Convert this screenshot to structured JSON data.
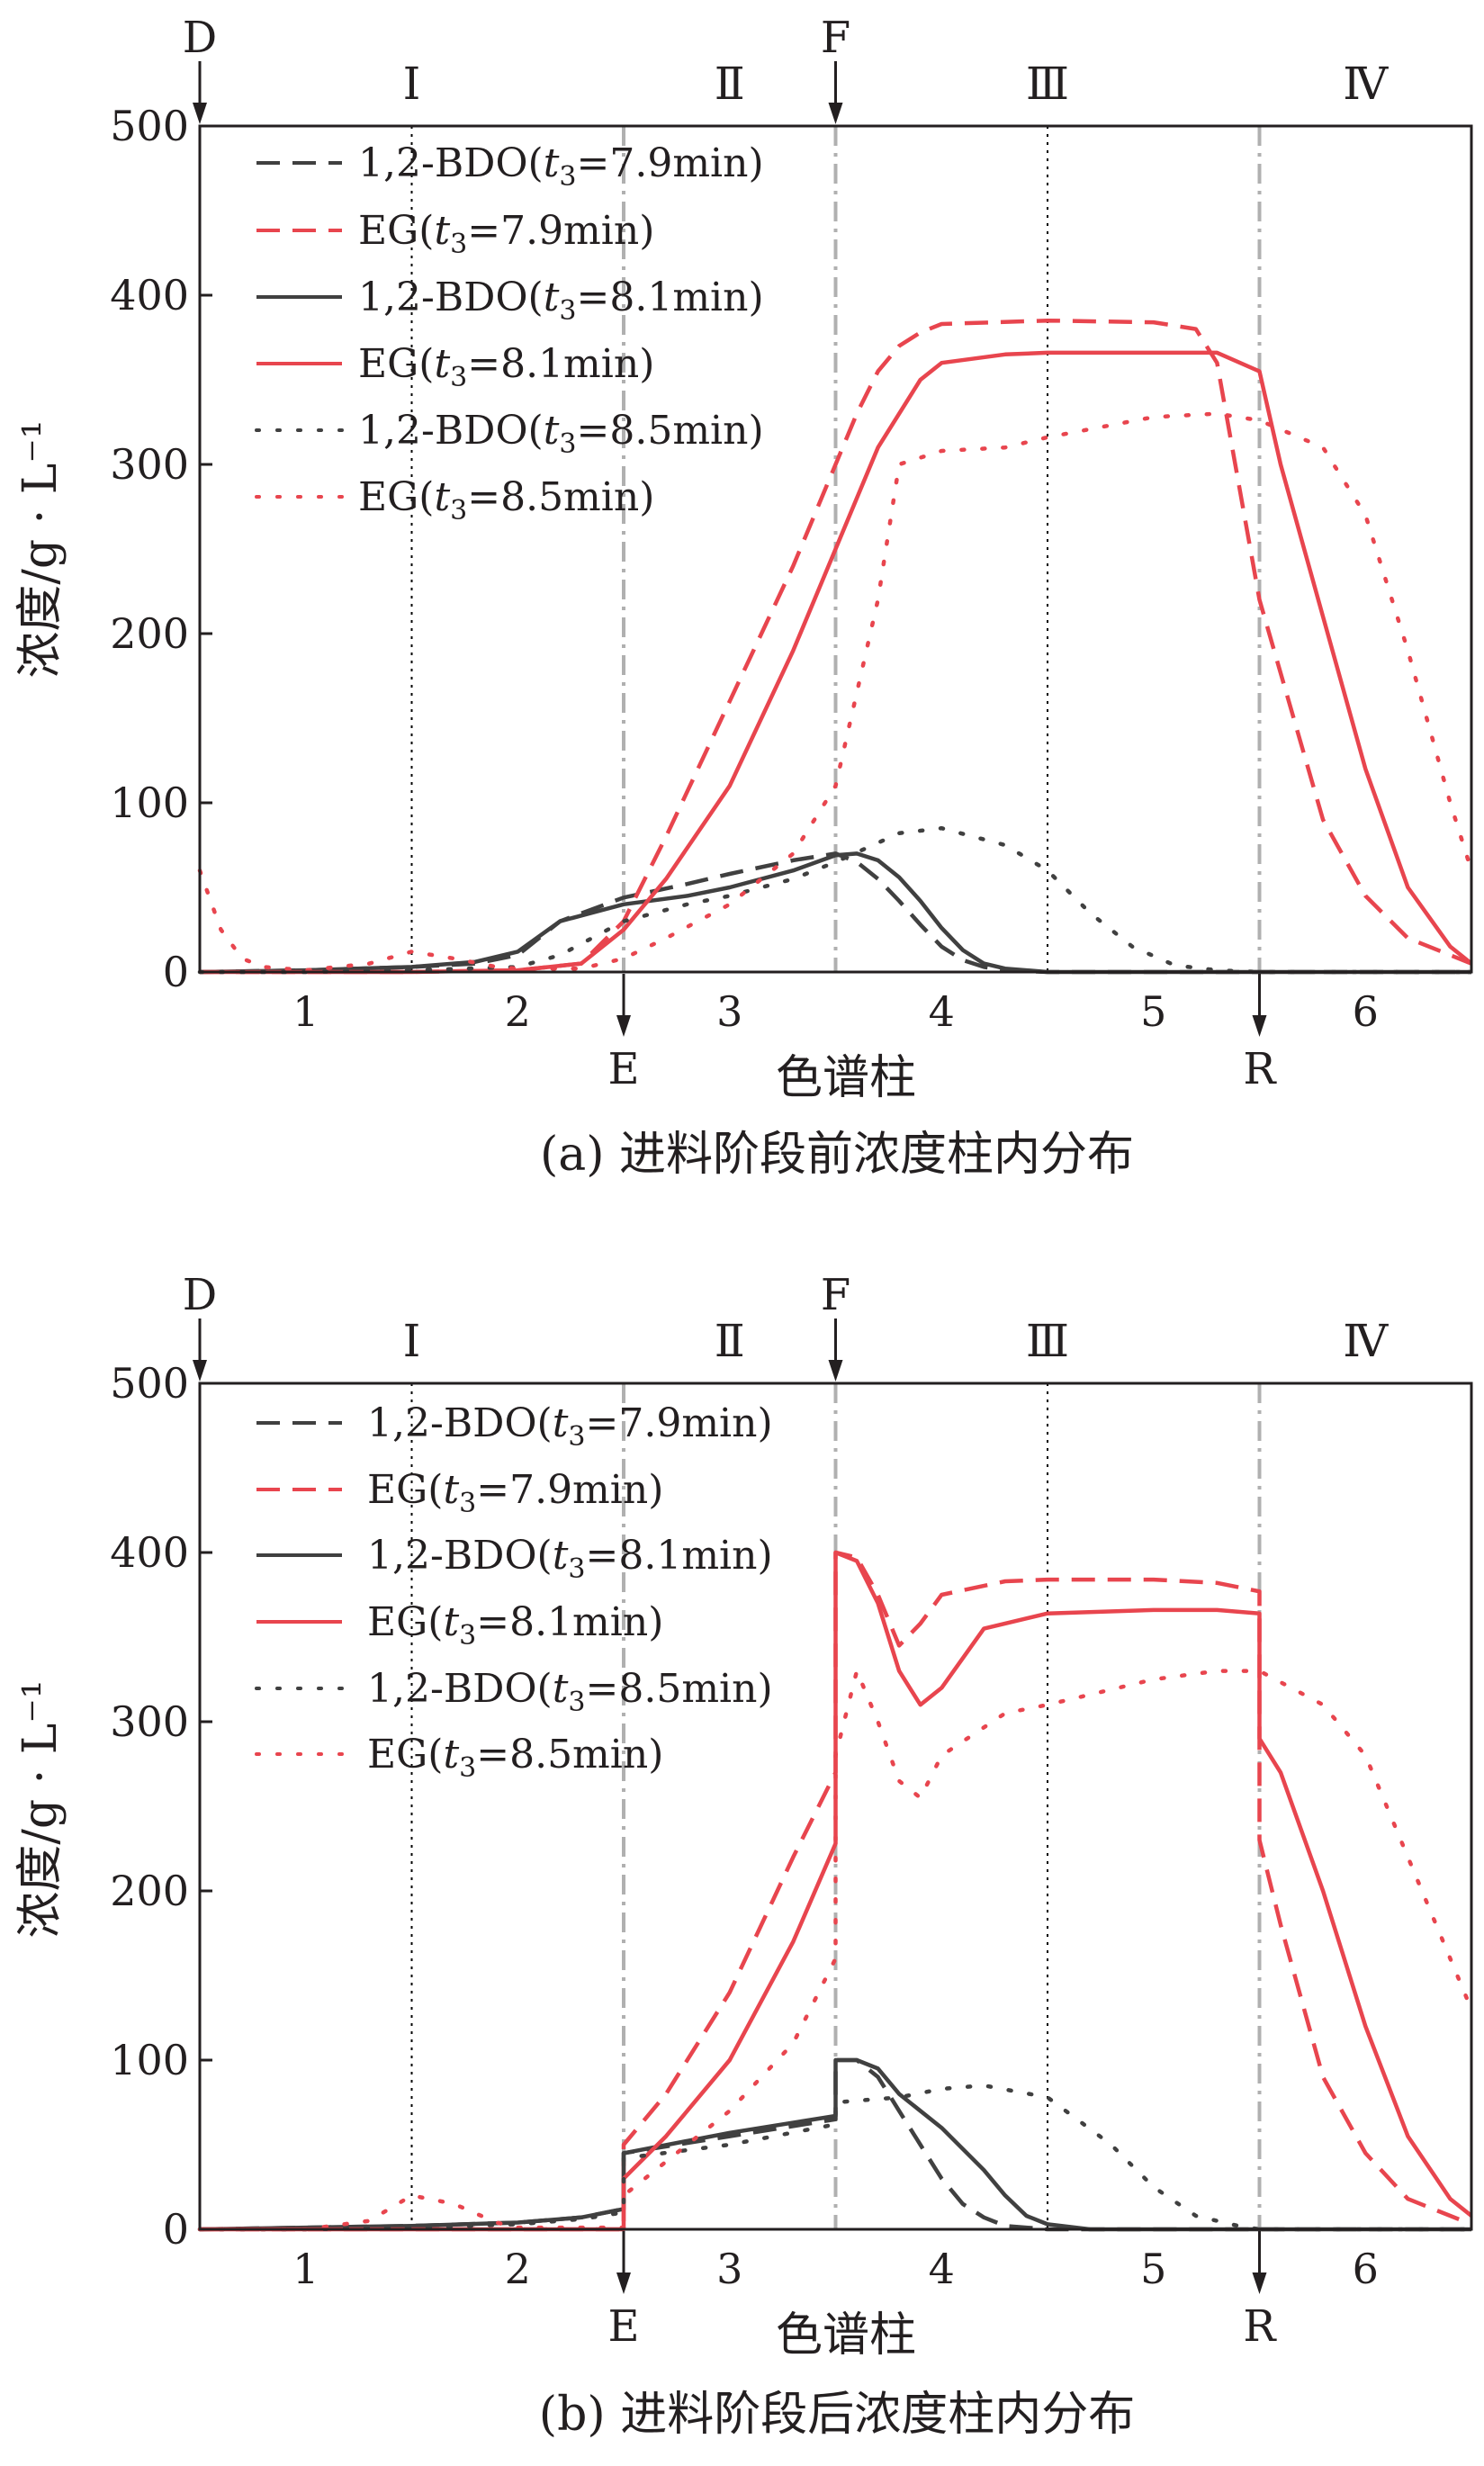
{
  "figure": {
    "panels": [
      {
        "caption": "(a) 进料阶段前浓度柱内分布"
      },
      {
        "caption": "(b) 进料阶段后浓度柱内分布"
      }
    ]
  },
  "chart_data": [
    {
      "type": "line",
      "caption": "(a) 进料阶段前浓度柱内分布",
      "xlabel": "色谱柱",
      "ylabel": "浓度/g · L⁻¹",
      "xlim": [
        0.5,
        6.5
      ],
      "ylim": [
        0,
        500
      ],
      "yticks": [
        0,
        100,
        200,
        300,
        400,
        500
      ],
      "column_labels": [
        "1",
        "2",
        "3",
        "4",
        "5",
        "6"
      ],
      "zone_labels": [
        "Ⅰ",
        "Ⅱ",
        "Ⅲ",
        "Ⅳ"
      ],
      "port_labels": {
        "top": [
          "D",
          "F"
        ],
        "bottom": [
          "E",
          "R"
        ]
      },
      "colors": {
        "bdo": "#404040",
        "eg": "#e8454e",
        "port_line": "#b0b0b0",
        "zone_line": "#000000"
      },
      "legend_position": "top-left",
      "series": [
        {
          "name": "1,2-BDO(t3=7.9min)",
          "legend_main": "1,2-BDO(",
          "legend_var": "t",
          "legend_sub": "3",
          "legend_rest": "=7.9min)",
          "component": "bdo",
          "style": "dashed",
          "x": [
            0.5,
            1.0,
            1.5,
            1.8,
            2.0,
            2.2,
            2.5,
            2.8,
            3.0,
            3.3,
            3.5,
            3.6,
            3.7,
            3.8,
            3.9,
            4.0,
            4.1,
            4.2,
            4.3,
            4.5,
            6.5
          ],
          "y": [
            0,
            1,
            3,
            5,
            10,
            30,
            44,
            52,
            58,
            66,
            70,
            65,
            55,
            42,
            28,
            15,
            7,
            3,
            1,
            0,
            0
          ]
        },
        {
          "name": "EG(t3=7.9min)",
          "legend_main": "EG(",
          "legend_var": "t",
          "legend_sub": "3",
          "legend_rest": "=7.9min)",
          "component": "eg",
          "style": "dashed",
          "x": [
            0.5,
            1.0,
            1.5,
            2.0,
            2.3,
            2.5,
            2.7,
            3.0,
            3.3,
            3.5,
            3.6,
            3.7,
            3.8,
            3.9,
            4.0,
            4.5,
            5.0,
            5.2,
            5.3,
            5.5,
            5.8,
            6.0,
            6.2,
            6.5
          ],
          "y": [
            0,
            0,
            0,
            1,
            5,
            30,
            80,
            160,
            240,
            300,
            330,
            355,
            370,
            378,
            383,
            385,
            384,
            380,
            360,
            220,
            90,
            45,
            20,
            5
          ]
        },
        {
          "name": "1,2-BDO(t3=8.1min)",
          "legend_main": "1,2-BDO(",
          "legend_var": "t",
          "legend_sub": "3",
          "legend_rest": "=8.1min)",
          "component": "bdo",
          "style": "solid",
          "x": [
            0.5,
            1.0,
            1.5,
            1.8,
            2.0,
            2.2,
            2.5,
            2.8,
            3.0,
            3.3,
            3.5,
            3.6,
            3.7,
            3.8,
            3.9,
            4.0,
            4.1,
            4.2,
            4.3,
            4.5,
            6.5
          ],
          "y": [
            0,
            1,
            3,
            6,
            12,
            30,
            40,
            45,
            50,
            60,
            69,
            70,
            66,
            56,
            42,
            26,
            13,
            5,
            2,
            0,
            0
          ]
        },
        {
          "name": "EG(t3=8.1min)",
          "legend_main": "EG(",
          "legend_var": "t",
          "legend_sub": "3",
          "legend_rest": "=8.1min)",
          "component": "eg",
          "style": "solid",
          "x": [
            0.5,
            1.0,
            1.5,
            2.0,
            2.3,
            2.5,
            2.7,
            3.0,
            3.3,
            3.5,
            3.7,
            3.9,
            4.0,
            4.3,
            4.5,
            5.0,
            5.3,
            5.5,
            5.6,
            5.8,
            6.0,
            6.2,
            6.4,
            6.5
          ],
          "y": [
            0,
            0,
            0,
            1,
            5,
            25,
            55,
            110,
            190,
            250,
            310,
            350,
            360,
            365,
            366,
            366,
            366,
            355,
            300,
            210,
            120,
            50,
            15,
            5
          ]
        },
        {
          "name": "1,2-BDO(t3=8.5min)",
          "legend_main": "1,2-BDO(",
          "legend_var": "t",
          "legend_sub": "3",
          "legend_rest": "=8.5min)",
          "component": "bdo",
          "style": "dotted",
          "x": [
            0.5,
            1.0,
            1.5,
            2.0,
            2.2,
            2.5,
            2.8,
            3.0,
            3.3,
            3.5,
            3.8,
            4.0,
            4.3,
            4.5,
            4.7,
            4.9,
            5.1,
            5.3,
            5.5,
            6.5
          ],
          "y": [
            0,
            0,
            1,
            3,
            10,
            30,
            40,
            45,
            55,
            65,
            82,
            85,
            75,
            60,
            35,
            15,
            4,
            1,
            0,
            0
          ]
        },
        {
          "name": "EG(t3=8.5min)",
          "legend_main": "EG(",
          "legend_var": "t",
          "legend_sub": "3",
          "legend_rest": "=8.5min)",
          "component": "eg",
          "style": "dotted",
          "x": [
            0.5,
            0.6,
            0.7,
            0.8,
            1.0,
            1.3,
            1.5,
            1.7,
            1.9,
            2.0,
            2.3,
            2.5,
            2.7,
            3.0,
            3.3,
            3.5,
            3.7,
            3.8,
            4.0,
            4.3,
            4.5,
            5.0,
            5.3,
            5.5,
            5.8,
            6.0,
            6.2,
            6.4,
            6.5
          ],
          "y": [
            60,
            25,
            8,
            3,
            1,
            5,
            12,
            8,
            3,
            2,
            2,
            8,
            20,
            40,
            70,
            110,
            220,
            300,
            308,
            310,
            316,
            328,
            330,
            326,
            310,
            270,
            190,
            100,
            60
          ]
        }
      ]
    },
    {
      "type": "line",
      "caption": "(b) 进料阶段后浓度柱内分布",
      "xlabel": "色谱柱",
      "ylabel": "浓度/g · L⁻¹",
      "xlim": [
        0.5,
        6.5
      ],
      "ylim": [
        0,
        500
      ],
      "yticks": [
        0,
        100,
        200,
        300,
        400,
        500
      ],
      "column_labels": [
        "1",
        "2",
        "3",
        "4",
        "5",
        "6"
      ],
      "zone_labels": [
        "Ⅰ",
        "Ⅱ",
        "Ⅲ",
        "Ⅳ"
      ],
      "port_labels": {
        "top": [
          "D",
          "F"
        ],
        "bottom": [
          "E",
          "R"
        ]
      },
      "colors": {
        "bdo": "#404040",
        "eg": "#e8454e",
        "port_line": "#b0b0b0",
        "zone_line": "#000000"
      },
      "legend_position": "top-left",
      "series": [
        {
          "name": "1,2-BDO(t3=7.9min)",
          "legend_main": "1,2-BDO(",
          "legend_var": "t",
          "legend_sub": "3",
          "legend_rest": "=7.9min)",
          "component": "bdo",
          "style": "dashed",
          "x": [
            0.5,
            1.0,
            1.5,
            2.0,
            2.3,
            2.5,
            2.5,
            3.0,
            3.5,
            3.5,
            3.6,
            3.7,
            3.8,
            3.9,
            4.0,
            4.1,
            4.2,
            4.3,
            4.5,
            6.5
          ],
          "y": [
            0,
            1,
            2,
            4,
            7,
            12,
            45,
            55,
            65,
            100,
            100,
            90,
            70,
            50,
            30,
            15,
            7,
            2,
            0,
            0
          ]
        },
        {
          "name": "EG(t3=7.9min)",
          "legend_main": "EG(",
          "legend_var": "t",
          "legend_sub": "3",
          "legend_rest": "=7.9min)",
          "component": "eg",
          "style": "dashed",
          "x": [
            0.5,
            1.0,
            1.5,
            2.0,
            2.5,
            2.5,
            2.7,
            3.0,
            3.3,
            3.5,
            3.5,
            3.6,
            3.7,
            3.8,
            3.9,
            4.0,
            4.3,
            4.5,
            5.0,
            5.3,
            5.5,
            5.5,
            5.6,
            5.8,
            6.0,
            6.2,
            6.5
          ],
          "y": [
            0,
            0,
            0,
            0,
            0,
            50,
            80,
            140,
            220,
            270,
            400,
            397,
            375,
            345,
            358,
            375,
            383,
            384,
            384,
            382,
            377,
            230,
            180,
            90,
            45,
            18,
            3
          ]
        },
        {
          "name": "1,2-BDO(t3=8.1min)",
          "legend_main": "1,2-BDO(",
          "legend_var": "t",
          "legend_sub": "3",
          "legend_rest": "=8.1min)",
          "component": "bdo",
          "style": "solid",
          "x": [
            0.5,
            1.0,
            1.5,
            2.0,
            2.3,
            2.5,
            2.5,
            3.0,
            3.5,
            3.5,
            3.6,
            3.7,
            3.8,
            4.0,
            4.2,
            4.3,
            4.4,
            4.5,
            4.7,
            6.5
          ],
          "y": [
            0,
            1,
            2,
            4,
            7,
            12,
            45,
            57,
            67,
            100,
            100,
            95,
            80,
            60,
            35,
            20,
            8,
            3,
            0,
            0
          ]
        },
        {
          "name": "EG(t3=8.1min)",
          "legend_main": "EG(",
          "legend_var": "t",
          "legend_sub": "3",
          "legend_rest": "=8.1min)",
          "component": "eg",
          "style": "solid",
          "x": [
            0.5,
            1.0,
            1.5,
            2.0,
            2.5,
            2.5,
            2.7,
            3.0,
            3.3,
            3.5,
            3.5,
            3.6,
            3.7,
            3.8,
            3.9,
            4.0,
            4.2,
            4.5,
            5.0,
            5.3,
            5.5,
            5.5,
            5.6,
            5.8,
            6.0,
            6.2,
            6.4,
            6.5
          ],
          "y": [
            0,
            0,
            0,
            0,
            0,
            30,
            55,
            100,
            170,
            228,
            400,
            395,
            370,
            330,
            310,
            320,
            355,
            364,
            366,
            366,
            364,
            290,
            270,
            200,
            120,
            55,
            18,
            8
          ]
        },
        {
          "name": "1,2-BDO(t3=8.5min)",
          "legend_main": "1,2-BDO(",
          "legend_var": "t",
          "legend_sub": "3",
          "legend_rest": "=8.5min)",
          "component": "bdo",
          "style": "dotted",
          "x": [
            0.5,
            1.0,
            1.5,
            2.0,
            2.3,
            2.5,
            2.5,
            3.0,
            3.5,
            3.5,
            3.8,
            4.0,
            4.2,
            4.5,
            4.8,
            5.0,
            5.2,
            5.4,
            5.5,
            6.5
          ],
          "y": [
            0,
            0,
            1,
            3,
            6,
            10,
            42,
            50,
            62,
            75,
            78,
            83,
            85,
            78,
            50,
            25,
            8,
            2,
            0,
            0
          ]
        },
        {
          "name": "EG(t3=8.5min)",
          "legend_main": "EG(",
          "legend_var": "t",
          "legend_sub": "3",
          "legend_rest": "=8.5min)",
          "component": "eg",
          "style": "dotted",
          "x": [
            0.5,
            1.0,
            1.3,
            1.5,
            1.7,
            1.9,
            2.0,
            2.5,
            2.5,
            2.7,
            3.0,
            3.3,
            3.5,
            3.5,
            3.6,
            3.7,
            3.8,
            3.9,
            4.0,
            4.3,
            4.5,
            5.0,
            5.3,
            5.5,
            5.8,
            6.0,
            6.2,
            6.4,
            6.5
          ],
          "y": [
            0,
            0,
            5,
            20,
            15,
            4,
            1,
            1,
            20,
            40,
            70,
            110,
            160,
            280,
            330,
            300,
            265,
            255,
            280,
            305,
            310,
            325,
            330,
            330,
            310,
            280,
            220,
            160,
            130
          ]
        }
      ]
    }
  ]
}
